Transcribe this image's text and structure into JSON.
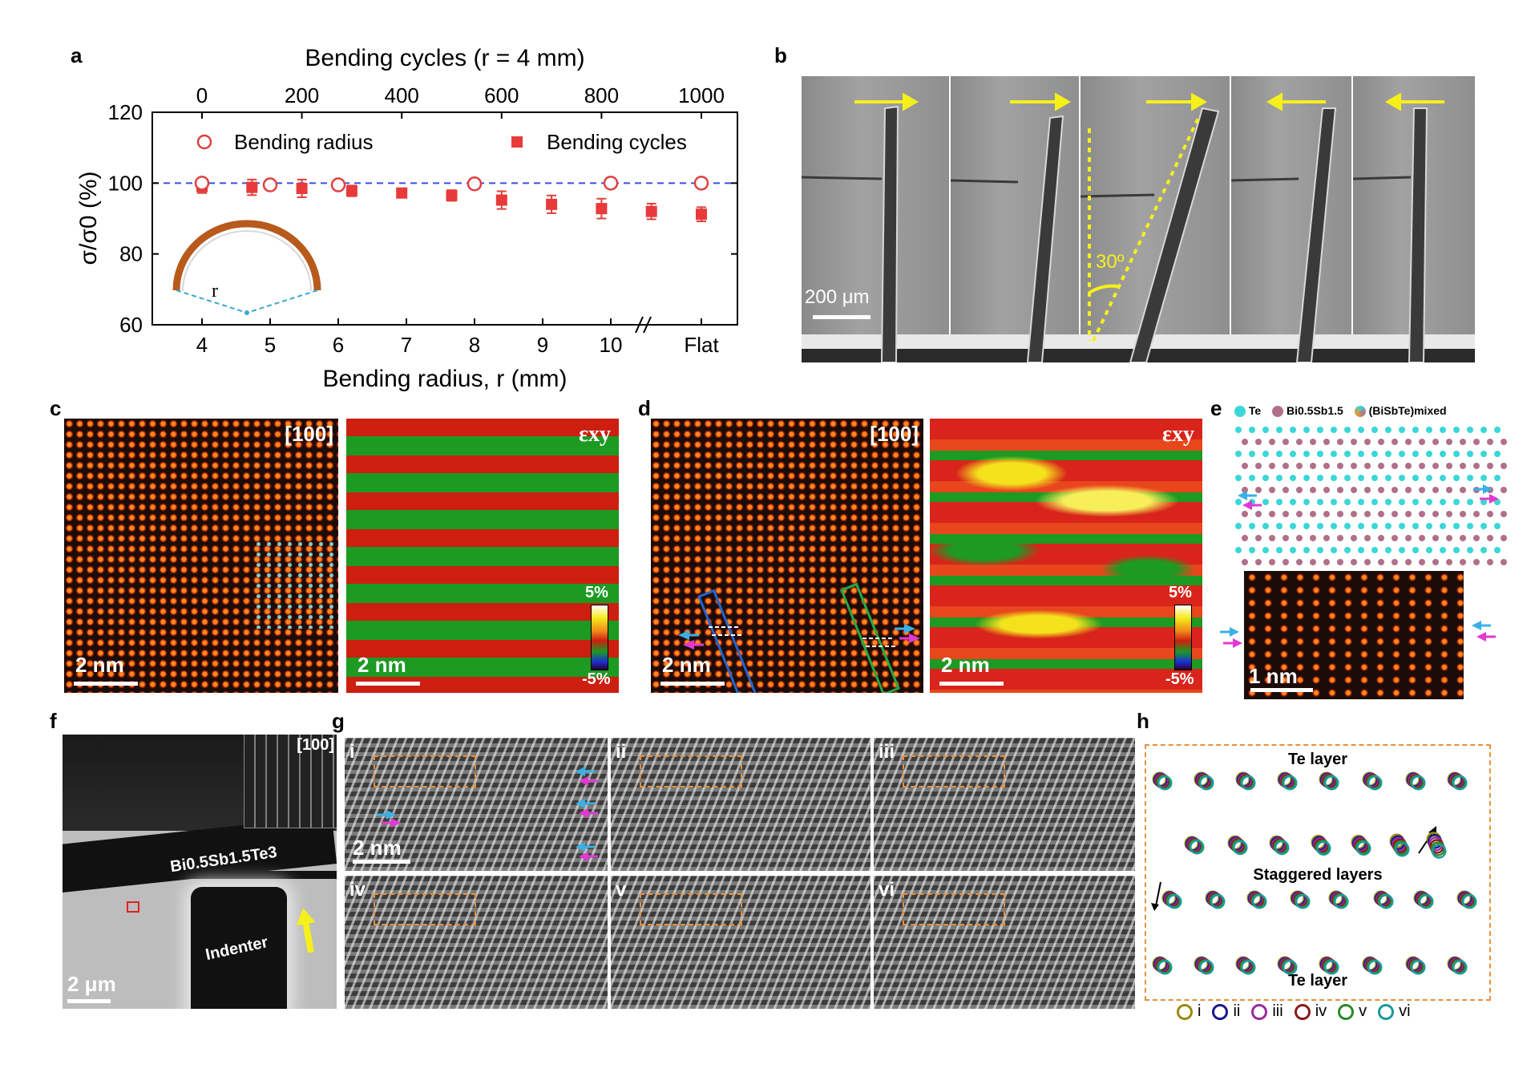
{
  "labels": {
    "a": "a",
    "b": "b",
    "c": "c",
    "d": "d",
    "e": "e",
    "f": "f",
    "g": "g",
    "h": "h"
  },
  "chart_data": {
    "type": "scatter",
    "title_top_axis": "Bending cycles (r = 4 mm)",
    "xlabel": "Bending radius, r (mm)",
    "ylabel": "σ/σ0 (%)",
    "ylim": [
      60,
      120
    ],
    "yticks": [
      "60",
      "80",
      "100",
      "120"
    ],
    "xticks_bottom": [
      "4",
      "5",
      "6",
      "7",
      "8",
      "9",
      "10",
      "Flat"
    ],
    "xticks_top": [
      "0",
      "200",
      "400",
      "600",
      "800",
      "1000"
    ],
    "reference_line": 100,
    "series": [
      {
        "name": "Bending radius",
        "marker": "open-circle",
        "x": [
          "4",
          "5",
          "6",
          "8",
          "10",
          "Flat"
        ],
        "values": [
          100,
          99.5,
          99.5,
          99.8,
          100,
          100
        ],
        "errors": [
          2,
          1.5,
          1.5,
          1.2,
          1.5,
          1.5
        ]
      },
      {
        "name": "Bending cycles",
        "marker": "filled-square",
        "cycles": [
          0,
          100,
          200,
          300,
          400,
          500,
          600,
          700,
          800,
          900,
          1000
        ],
        "values": [
          99,
          98.8,
          98.5,
          97.8,
          97.2,
          96.5,
          95.2,
          94,
          92.8,
          92,
          91.2
        ],
        "errors": [
          1.8,
          2.2,
          2.5,
          1.5,
          1.2,
          1.5,
          2.5,
          2.5,
          2.8,
          2.2,
          2.0
        ]
      }
    ],
    "inset_label": "r"
  },
  "panel_b": {
    "angle": "30º",
    "scale": "200 μm"
  },
  "panel_c": {
    "zone": "[100]",
    "strain": "εxy",
    "scale_left": "2 nm",
    "scale_right": "2 nm",
    "cmax": "5%",
    "cmin": "-5%"
  },
  "panel_d": {
    "zone": "[100]",
    "strain": "εxy",
    "scale_left": "2 nm",
    "scale_right": "2 nm",
    "cmax": "5%",
    "cmin": "-5%"
  },
  "panel_e": {
    "legend_te": "Te",
    "legend_bisb": "Bi0.5Sb1.5",
    "legend_mixed": "(BiSbTe)mixed",
    "scale": "1 nm"
  },
  "panel_f": {
    "zone": "[100]",
    "sample": "Bi0.5Sb1.5Te3",
    "indenter": "Indenter",
    "scale": "2 μm"
  },
  "panel_g": {
    "labels": [
      "i",
      "ii",
      "iii",
      "iv",
      "v",
      "vi"
    ],
    "scale": "2 nm"
  },
  "panel_h": {
    "te_top": "Te layer",
    "staggered": "Staggered layers",
    "te_bottom": "Te layer",
    "legend": [
      "i",
      "ii",
      "iii",
      "iv",
      "v",
      "vi"
    ],
    "legend_colors": [
      "#9a8a10",
      "#1a1a8a",
      "#9a2a9a",
      "#8a1a1a",
      "#2a8a2a",
      "#1a9a9a"
    ]
  }
}
